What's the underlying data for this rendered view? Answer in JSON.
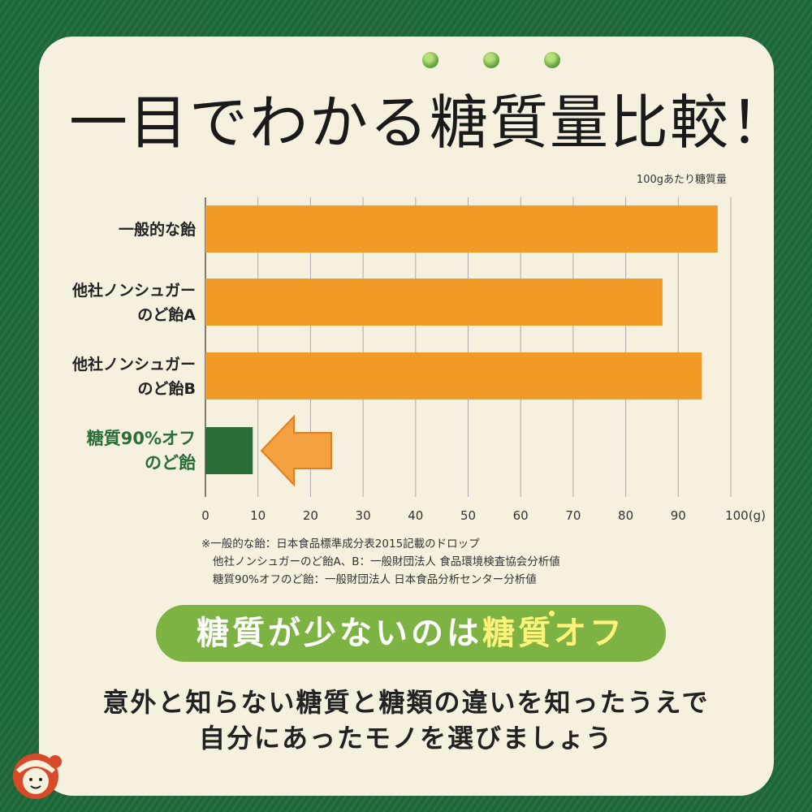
{
  "title": "一目でわかる糖質量比較！",
  "unit_label": "100gあたり糖質量",
  "chart_data": {
    "type": "bar",
    "orientation": "horizontal",
    "categories": [
      [
        "一般的な飴"
      ],
      [
        "他社ノンシュガー",
        "のど飴A"
      ],
      [
        "他社ノンシュガー",
        "のど飴B"
      ],
      [
        "糖質90%オフ",
        "のど飴"
      ]
    ],
    "values": [
      97.5,
      87,
      94.5,
      9
    ],
    "bar_colors": [
      "#f19a26",
      "#f19a26",
      "#f19a26",
      "#2a6e3a"
    ],
    "highlight_label_color": "#2a6e3a",
    "x_ticks": [
      "0",
      "10",
      "20",
      "30",
      "40",
      "50",
      "60",
      "70",
      "80",
      "90",
      "100(g)"
    ],
    "xlim": [
      0,
      100
    ],
    "grid": true,
    "annotation": "arrow pointing to 糖質90%オフ bar"
  },
  "notes": [
    "※一般的な飴：日本食品標準成分表2015記載のドロップ",
    "他社ノンシュガーのど飴A、B：一般財団法人 食品環境検査協会分析値",
    "糖質90%オフのど飴：一般財団法人 日本食品分析センター分析値"
  ],
  "banner": {
    "part1": "糖質が少ないのは",
    "part2": "糖質オフ"
  },
  "message": [
    "意外と知らない糖質と糖類の違いを知ったうえで",
    "自分にあったモノを選びましょう"
  ],
  "colors": {
    "background": "#1f6b3a",
    "card": "#f6f1de",
    "bar": "#f19a26",
    "accent_green": "#2a6e3a",
    "banner": "#7cb342",
    "banner_highlight": "#fff27a"
  },
  "icons": [
    "green-dot-icon",
    "left-arrow-icon",
    "mascot-icon"
  ]
}
